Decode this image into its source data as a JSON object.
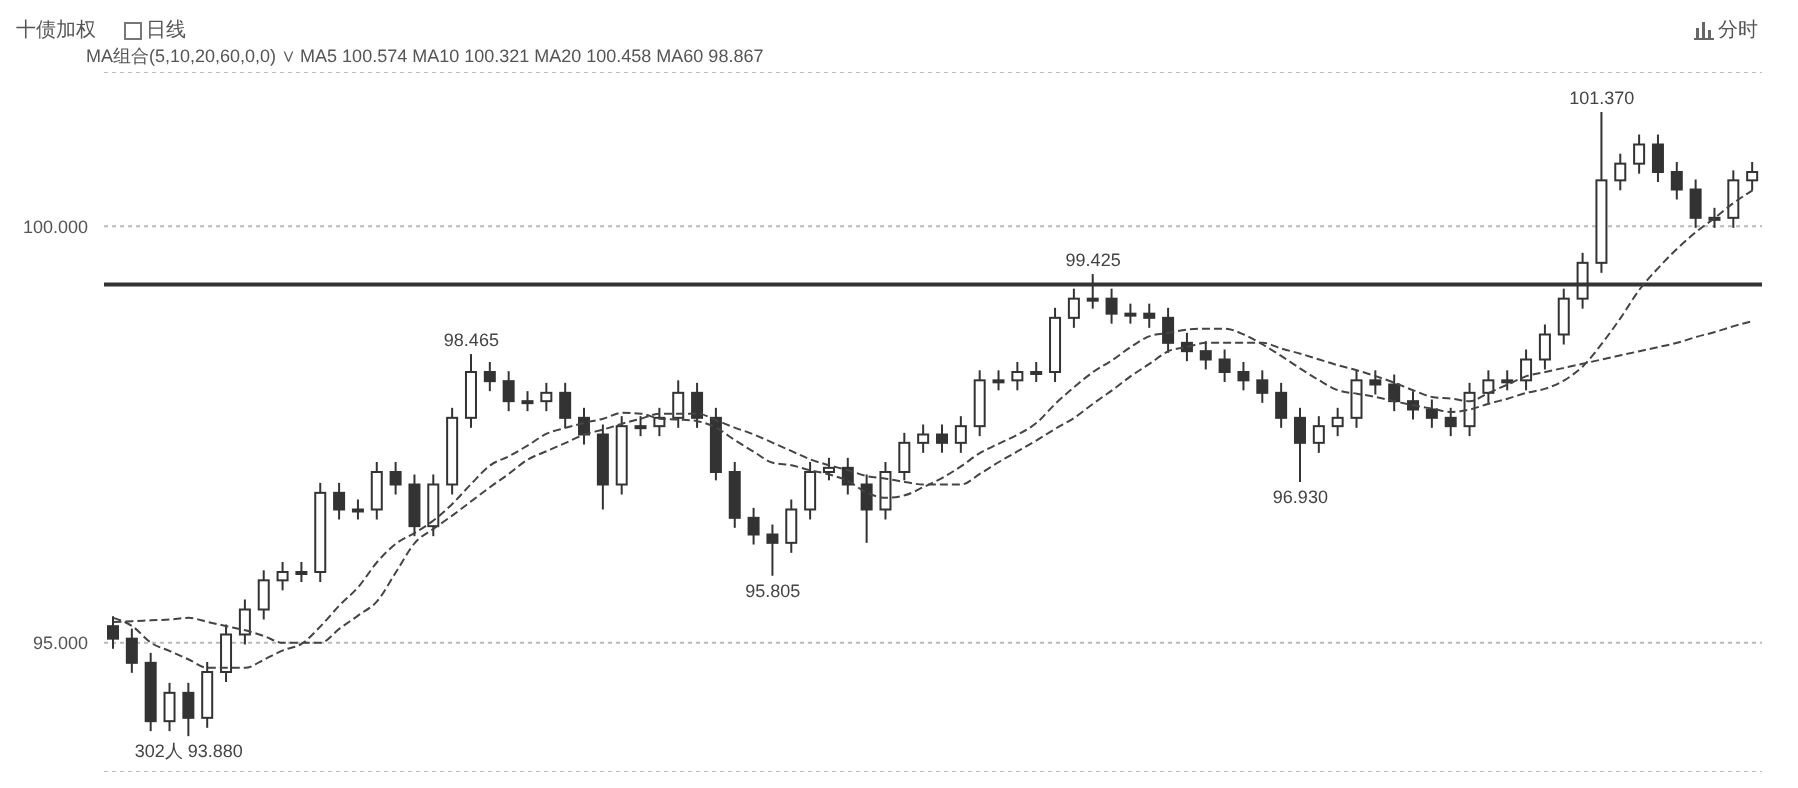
{
  "chart_data": {
    "type": "candlestick",
    "title": "十债加权",
    "subtitle": "MA组合(5,10,20,60,0,0) ∨  MA5 100.574  MA10 100.321  MA20 100.458  MA60 98.867",
    "annotations": [
      "日线",
      "分时",
      {
        "text": "302人 93.880",
        "y": 93.88
      },
      {
        "text": "98.465",
        "y": 98.465
      },
      {
        "text": "95.805",
        "y": 95.805
      },
      {
        "text": "99.425",
        "y": 99.425
      },
      {
        "text": "96.930",
        "y": 96.93
      },
      {
        "text": "101.370",
        "y": 101.37
      }
    ],
    "categories": [
      null,
      null,
      null,
      null,
      null,
      null,
      null,
      null,
      null,
      null,
      null,
      null,
      null,
      null,
      null,
      null,
      null,
      null,
      null,
      null,
      null,
      null,
      null,
      null,
      null,
      null,
      null,
      null,
      null,
      null,
      null,
      null,
      null,
      null,
      null,
      null,
      null,
      null,
      null,
      null,
      null,
      null,
      null,
      null,
      null,
      null,
      null,
      null,
      null,
      null,
      null,
      null,
      null,
      null,
      null,
      null,
      null,
      null,
      null,
      null,
      null,
      null,
      null,
      null,
      null,
      null,
      null,
      null,
      null,
      null,
      null,
      null,
      null,
      null,
      null,
      null,
      null,
      null,
      null,
      null,
      null,
      null,
      null,
      null,
      null,
      null,
      null,
      null
    ],
    "color": "#333333",
    "ohlc": [
      [
        95.2,
        95.32,
        94.93,
        95.05
      ],
      [
        95.05,
        95.17,
        94.64,
        94.76
      ],
      [
        94.76,
        94.88,
        93.94,
        94.06
      ],
      [
        94.06,
        94.52,
        93.94,
        94.4
      ],
      [
        94.4,
        94.52,
        93.88,
        94.1
      ],
      [
        94.1,
        94.77,
        93.98,
        94.65
      ],
      [
        94.65,
        95.22,
        94.53,
        95.1
      ],
      [
        95.1,
        95.52,
        94.98,
        95.4
      ],
      [
        95.4,
        95.87,
        95.28,
        95.75
      ],
      [
        95.75,
        95.97,
        95.63,
        95.85
      ],
      [
        95.85,
        95.97,
        95.73,
        95.85
      ],
      [
        95.85,
        96.92,
        95.73,
        96.8
      ],
      [
        96.8,
        96.92,
        96.48,
        96.6
      ],
      [
        96.6,
        96.72,
        96.48,
        96.6
      ],
      [
        96.6,
        97.17,
        96.48,
        97.05
      ],
      [
        97.05,
        97.17,
        96.78,
        96.9
      ],
      [
        96.9,
        97.02,
        96.28,
        96.4
      ],
      [
        96.4,
        97.02,
        96.28,
        96.9
      ],
      [
        96.9,
        97.82,
        96.78,
        97.7
      ],
      [
        97.7,
        98.465,
        97.58,
        98.25
      ],
      [
        98.25,
        98.37,
        98.02,
        98.14
      ],
      [
        98.14,
        98.26,
        97.78,
        97.9
      ],
      [
        97.9,
        98.02,
        97.78,
        97.9
      ],
      [
        97.9,
        98.12,
        97.78,
        98.0
      ],
      [
        98.0,
        98.12,
        97.58,
        97.7
      ],
      [
        97.7,
        97.82,
        97.38,
        97.5
      ],
      [
        97.5,
        97.62,
        96.6,
        96.9
      ],
      [
        96.9,
        97.72,
        96.78,
        97.6
      ],
      [
        97.6,
        97.72,
        97.48,
        97.6
      ],
      [
        97.6,
        97.82,
        97.48,
        97.7
      ],
      [
        97.7,
        98.15,
        97.58,
        98.0
      ],
      [
        98.0,
        98.12,
        97.58,
        97.7
      ],
      [
        97.7,
        97.82,
        96.95,
        97.05
      ],
      [
        97.05,
        97.17,
        96.38,
        96.5
      ],
      [
        96.5,
        96.62,
        96.18,
        96.3
      ],
      [
        96.3,
        96.42,
        95.805,
        96.2
      ],
      [
        96.2,
        96.72,
        96.08,
        96.6
      ],
      [
        96.6,
        97.17,
        96.48,
        97.05
      ],
      [
        97.05,
        97.22,
        96.95,
        97.1
      ],
      [
        97.1,
        97.22,
        96.78,
        96.9
      ],
      [
        96.9,
        97.02,
        96.2,
        96.6
      ],
      [
        96.6,
        97.17,
        96.48,
        97.05
      ],
      [
        97.05,
        97.52,
        96.95,
        97.4
      ],
      [
        97.4,
        97.62,
        97.28,
        97.5
      ],
      [
        97.5,
        97.62,
        97.28,
        97.4
      ],
      [
        97.4,
        97.72,
        97.28,
        97.6
      ],
      [
        97.6,
        98.27,
        97.48,
        98.15
      ],
      [
        98.15,
        98.27,
        98.03,
        98.15
      ],
      [
        98.15,
        98.37,
        98.03,
        98.25
      ],
      [
        98.25,
        98.37,
        98.13,
        98.25
      ],
      [
        98.25,
        99.02,
        98.13,
        98.9
      ],
      [
        98.9,
        99.25,
        98.78,
        99.13
      ],
      [
        99.13,
        99.425,
        99.01,
        99.13
      ],
      [
        99.13,
        99.25,
        98.83,
        98.95
      ],
      [
        98.95,
        99.07,
        98.83,
        98.95
      ],
      [
        98.95,
        99.07,
        98.78,
        98.9
      ],
      [
        98.9,
        99.02,
        98.48,
        98.6
      ],
      [
        98.6,
        98.72,
        98.38,
        98.5
      ],
      [
        98.5,
        98.62,
        98.28,
        98.4
      ],
      [
        98.4,
        98.52,
        98.13,
        98.25
      ],
      [
        98.25,
        98.37,
        98.03,
        98.15
      ],
      [
        98.15,
        98.27,
        97.88,
        98.0
      ],
      [
        98.0,
        98.12,
        97.58,
        97.7
      ],
      [
        97.7,
        97.82,
        96.93,
        97.4
      ],
      [
        97.4,
        97.72,
        97.28,
        97.6
      ],
      [
        97.6,
        97.82,
        97.48,
        97.7
      ],
      [
        97.7,
        98.27,
        97.58,
        98.15
      ],
      [
        98.15,
        98.27,
        97.98,
        98.1
      ],
      [
        98.1,
        98.22,
        97.78,
        97.9
      ],
      [
        97.9,
        98.02,
        97.68,
        97.8
      ],
      [
        97.8,
        97.92,
        97.58,
        97.7
      ],
      [
        97.7,
        97.82,
        97.48,
        97.6
      ],
      [
        97.6,
        98.12,
        97.48,
        98.0
      ],
      [
        98.0,
        98.27,
        97.88,
        98.15
      ],
      [
        98.15,
        98.27,
        98.03,
        98.15
      ],
      [
        98.15,
        98.52,
        98.03,
        98.4
      ],
      [
        98.4,
        98.82,
        98.28,
        98.7
      ],
      [
        98.7,
        99.25,
        98.58,
        99.13
      ],
      [
        99.13,
        99.68,
        99.01,
        99.56
      ],
      [
        99.56,
        101.37,
        99.44,
        100.55
      ],
      [
        100.55,
        100.87,
        100.43,
        100.75
      ],
      [
        100.75,
        101.1,
        100.63,
        100.98
      ],
      [
        100.98,
        101.1,
        100.53,
        100.65
      ],
      [
        100.65,
        100.77,
        100.32,
        100.44
      ],
      [
        100.44,
        100.56,
        99.98,
        100.1
      ],
      [
        100.1,
        100.22,
        99.98,
        100.1
      ],
      [
        100.1,
        100.67,
        99.98,
        100.55
      ],
      [
        100.55,
        100.77,
        100.43,
        100.65
      ]
    ],
    "series": [
      {
        "type": "line",
        "color": "#444444",
        "line_style": "dashed",
        "values": [
          95.3,
          95.2,
          95.0,
          94.9,
          94.8,
          94.7,
          94.7,
          94.7,
          94.8,
          94.91,
          94.99,
          95.2,
          95.45,
          95.67,
          95.97,
          96.19,
          96.32,
          96.47,
          96.67,
          96.91,
          97.13,
          97.24,
          97.37,
          97.51,
          97.58,
          97.64,
          97.69,
          97.76,
          97.75,
          97.69,
          97.68,
          97.66,
          97.58,
          97.43,
          97.29,
          97.16,
          97.13,
          97.07,
          97.02,
          96.94,
          96.8,
          96.74,
          96.77,
          96.87,
          96.98,
          97.12,
          97.28,
          97.39,
          97.5,
          97.64,
          97.87,
          98.07,
          98.25,
          98.39,
          98.55,
          98.68,
          98.72,
          98.76,
          98.77,
          98.77,
          98.7,
          98.58,
          98.44,
          98.29,
          98.15,
          98.03,
          97.99,
          97.95,
          97.9,
          97.85,
          97.81,
          97.77,
          97.8,
          97.87,
          97.93,
          98.0,
          98.05,
          98.15,
          98.32,
          98.59,
          98.9,
          99.24,
          99.5,
          99.73,
          99.93,
          100.1,
          100.28,
          100.43
        ]
      },
      {
        "type": "line",
        "color": "#444444",
        "line_style": "dashed",
        "values": [
          95.25,
          95.26,
          95.27,
          95.28,
          95.3,
          95.25,
          95.2,
          95.15,
          95.08,
          95.0,
          95.0,
          95.0,
          95.17,
          95.33,
          95.5,
          95.85,
          96.2,
          96.37,
          96.53,
          96.7,
          96.87,
          97.03,
          97.2,
          97.3,
          97.4,
          97.5,
          97.56,
          97.63,
          97.69,
          97.75,
          97.75,
          97.75,
          97.67,
          97.58,
          97.5,
          97.4,
          97.3,
          97.2,
          97.13,
          97.07,
          97.0,
          96.97,
          96.93,
          96.9,
          96.9,
          96.9,
          97.03,
          97.17,
          97.3,
          97.43,
          97.57,
          97.7,
          97.87,
          98.03,
          98.2,
          98.35,
          98.5,
          98.55,
          98.6,
          98.6,
          98.6,
          98.6,
          98.53,
          98.47,
          98.4,
          98.33,
          98.27,
          98.2,
          98.12,
          98.03,
          97.95,
          97.93,
          97.9,
          98.0,
          98.1,
          98.2,
          98.25,
          98.3,
          98.35,
          98.4,
          98.45,
          98.5,
          98.55,
          98.6,
          98.67,
          98.73,
          98.8,
          98.86
        ]
      }
    ],
    "ylim": [
      93.45,
      101.85
    ],
    "yticks": [
      {
        "value": 95,
        "label": "95.000"
      },
      {
        "value": 100,
        "label": "100.000"
      }
    ],
    "grid": "y",
    "tick_labels": "y",
    "ref_lines": [
      {
        "axis": "y",
        "value": 99.3,
        "color": "#333333"
      }
    ]
  }
}
